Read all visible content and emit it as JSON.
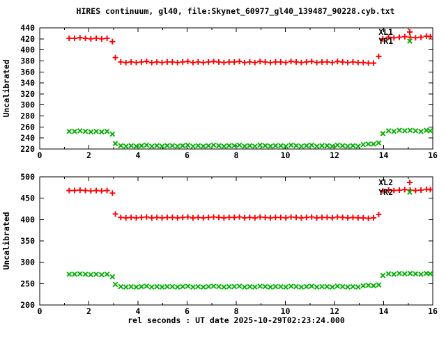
{
  "title": "HIRES continuum, gl40, file:Skynet_60977_gl40_139487_90228.cyb.txt",
  "x_axis_label": "rel seconds : UT date 2025-10-29T02:23:24.000",
  "colors": {
    "red": "#ff0000",
    "green": "#00b000",
    "axis": "#000000",
    "background": "#ffffff"
  },
  "chart_data": [
    {
      "type": "scatter",
      "ylabel": "Uncalibrated",
      "xlim": [
        0,
        16
      ],
      "ylim": [
        220,
        440
      ],
      "xticks_major": [
        0,
        2,
        4,
        6,
        8,
        10,
        12,
        14,
        16
      ],
      "xticks_minor": [
        1,
        3,
        5,
        7,
        9,
        11,
        13,
        15
      ],
      "yticks": [
        220,
        240,
        260,
        280,
        300,
        320,
        340,
        360,
        380,
        400,
        420,
        440
      ],
      "show_x_tick_labels": true,
      "legend_position": "top-right",
      "grid": false,
      "x": [
        1.2,
        1.42,
        1.64,
        1.86,
        2.08,
        2.3,
        2.52,
        2.74,
        2.96,
        3.08,
        3.3,
        3.51,
        3.72,
        3.93,
        4.14,
        4.35,
        4.56,
        4.77,
        4.98,
        5.19,
        5.4,
        5.61,
        5.82,
        6.03,
        6.24,
        6.45,
        6.66,
        6.87,
        7.08,
        7.29,
        7.5,
        7.71,
        7.92,
        8.13,
        8.34,
        8.55,
        8.76,
        8.97,
        9.18,
        9.39,
        9.6,
        9.81,
        10.02,
        10.23,
        10.44,
        10.65,
        10.86,
        11.07,
        11.28,
        11.49,
        11.7,
        11.91,
        12.12,
        12.33,
        12.54,
        12.75,
        12.96,
        13.17,
        13.38,
        13.59,
        13.8,
        13.97,
        14.2,
        14.42,
        14.64,
        14.86,
        15.08,
        15.3,
        15.52,
        15.74,
        15.9
      ],
      "series": [
        {
          "name": "XL1",
          "marker": "plus",
          "color": "#ff0000",
          "y": [
            421,
            421,
            422,
            421,
            420,
            421,
            420,
            421,
            415,
            386,
            378,
            377,
            378,
            377,
            378,
            379,
            377,
            378,
            377,
            378,
            378,
            377,
            378,
            379,
            377,
            378,
            377,
            378,
            379,
            378,
            377,
            378,
            378,
            379,
            377,
            378,
            377,
            379,
            378,
            377,
            378,
            378,
            377,
            379,
            378,
            377,
            378,
            379,
            377,
            378,
            378,
            377,
            379,
            378,
            377,
            378,
            377,
            377,
            376,
            376,
            388,
            420,
            423,
            422,
            423,
            424,
            423,
            422,
            423,
            425,
            424
          ]
        },
        {
          "name": "YR1",
          "marker": "cross",
          "color": "#00b000",
          "y": [
            252,
            252,
            253,
            252,
            251,
            252,
            251,
            252,
            247,
            230,
            226,
            225,
            226,
            225,
            226,
            227,
            225,
            226,
            225,
            226,
            226,
            225,
            226,
            227,
            225,
            226,
            225,
            226,
            227,
            226,
            225,
            226,
            226,
            227,
            225,
            226,
            225,
            227,
            226,
            225,
            226,
            226,
            225,
            227,
            226,
            225,
            226,
            227,
            225,
            226,
            226,
            225,
            227,
            226,
            225,
            226,
            225,
            228,
            229,
            229,
            231,
            248,
            253,
            252,
            254,
            253,
            254,
            253,
            252,
            254,
            253
          ]
        }
      ]
    },
    {
      "type": "scatter",
      "ylabel": "Uncalibrated",
      "xlim": [
        0,
        16
      ],
      "ylim": [
        200,
        500
      ],
      "xticks_major": [
        0,
        2,
        4,
        6,
        8,
        10,
        12,
        14,
        16
      ],
      "xticks_minor": [
        1,
        3,
        5,
        7,
        9,
        11,
        13,
        15
      ],
      "yticks": [
        200,
        250,
        300,
        350,
        400,
        450,
        500
      ],
      "show_x_tick_labels": true,
      "legend_position": "top-right",
      "grid": false,
      "x": [
        1.2,
        1.42,
        1.64,
        1.86,
        2.08,
        2.3,
        2.52,
        2.74,
        2.96,
        3.08,
        3.3,
        3.51,
        3.72,
        3.93,
        4.14,
        4.35,
        4.56,
        4.77,
        4.98,
        5.19,
        5.4,
        5.61,
        5.82,
        6.03,
        6.24,
        6.45,
        6.66,
        6.87,
        7.08,
        7.29,
        7.5,
        7.71,
        7.92,
        8.13,
        8.34,
        8.55,
        8.76,
        8.97,
        9.18,
        9.39,
        9.6,
        9.81,
        10.02,
        10.23,
        10.44,
        10.65,
        10.86,
        11.07,
        11.28,
        11.49,
        11.7,
        11.91,
        12.12,
        12.33,
        12.54,
        12.75,
        12.96,
        13.17,
        13.38,
        13.59,
        13.8,
        13.97,
        14.2,
        14.42,
        14.64,
        14.86,
        15.08,
        15.3,
        15.52,
        15.74,
        15.9
      ],
      "series": [
        {
          "name": "XL2",
          "marker": "plus",
          "color": "#ff0000",
          "y": [
            468,
            468,
            469,
            468,
            467,
            468,
            467,
            468,
            462,
            413,
            405,
            404,
            405,
            404,
            405,
            406,
            404,
            405,
            404,
            405,
            405,
            404,
            405,
            406,
            404,
            405,
            404,
            405,
            406,
            405,
            404,
            405,
            405,
            406,
            404,
            405,
            404,
            406,
            405,
            404,
            405,
            405,
            404,
            406,
            405,
            404,
            405,
            406,
            404,
            405,
            405,
            404,
            406,
            405,
            404,
            405,
            404,
            404,
            403,
            404,
            412,
            467,
            469,
            468,
            469,
            470,
            469,
            468,
            469,
            471,
            470
          ]
        },
        {
          "name": "YR2",
          "marker": "cross",
          "color": "#00b000",
          "y": [
            272,
            272,
            273,
            272,
            271,
            272,
            271,
            272,
            266,
            248,
            243,
            242,
            243,
            242,
            243,
            244,
            242,
            243,
            242,
            243,
            243,
            242,
            243,
            244,
            242,
            243,
            242,
            243,
            244,
            243,
            242,
            243,
            243,
            244,
            242,
            243,
            242,
            244,
            243,
            242,
            243,
            243,
            242,
            244,
            243,
            242,
            243,
            244,
            242,
            243,
            243,
            242,
            244,
            243,
            242,
            243,
            242,
            245,
            246,
            245,
            247,
            269,
            273,
            272,
            274,
            273,
            274,
            273,
            272,
            274,
            273
          ]
        }
      ]
    }
  ]
}
